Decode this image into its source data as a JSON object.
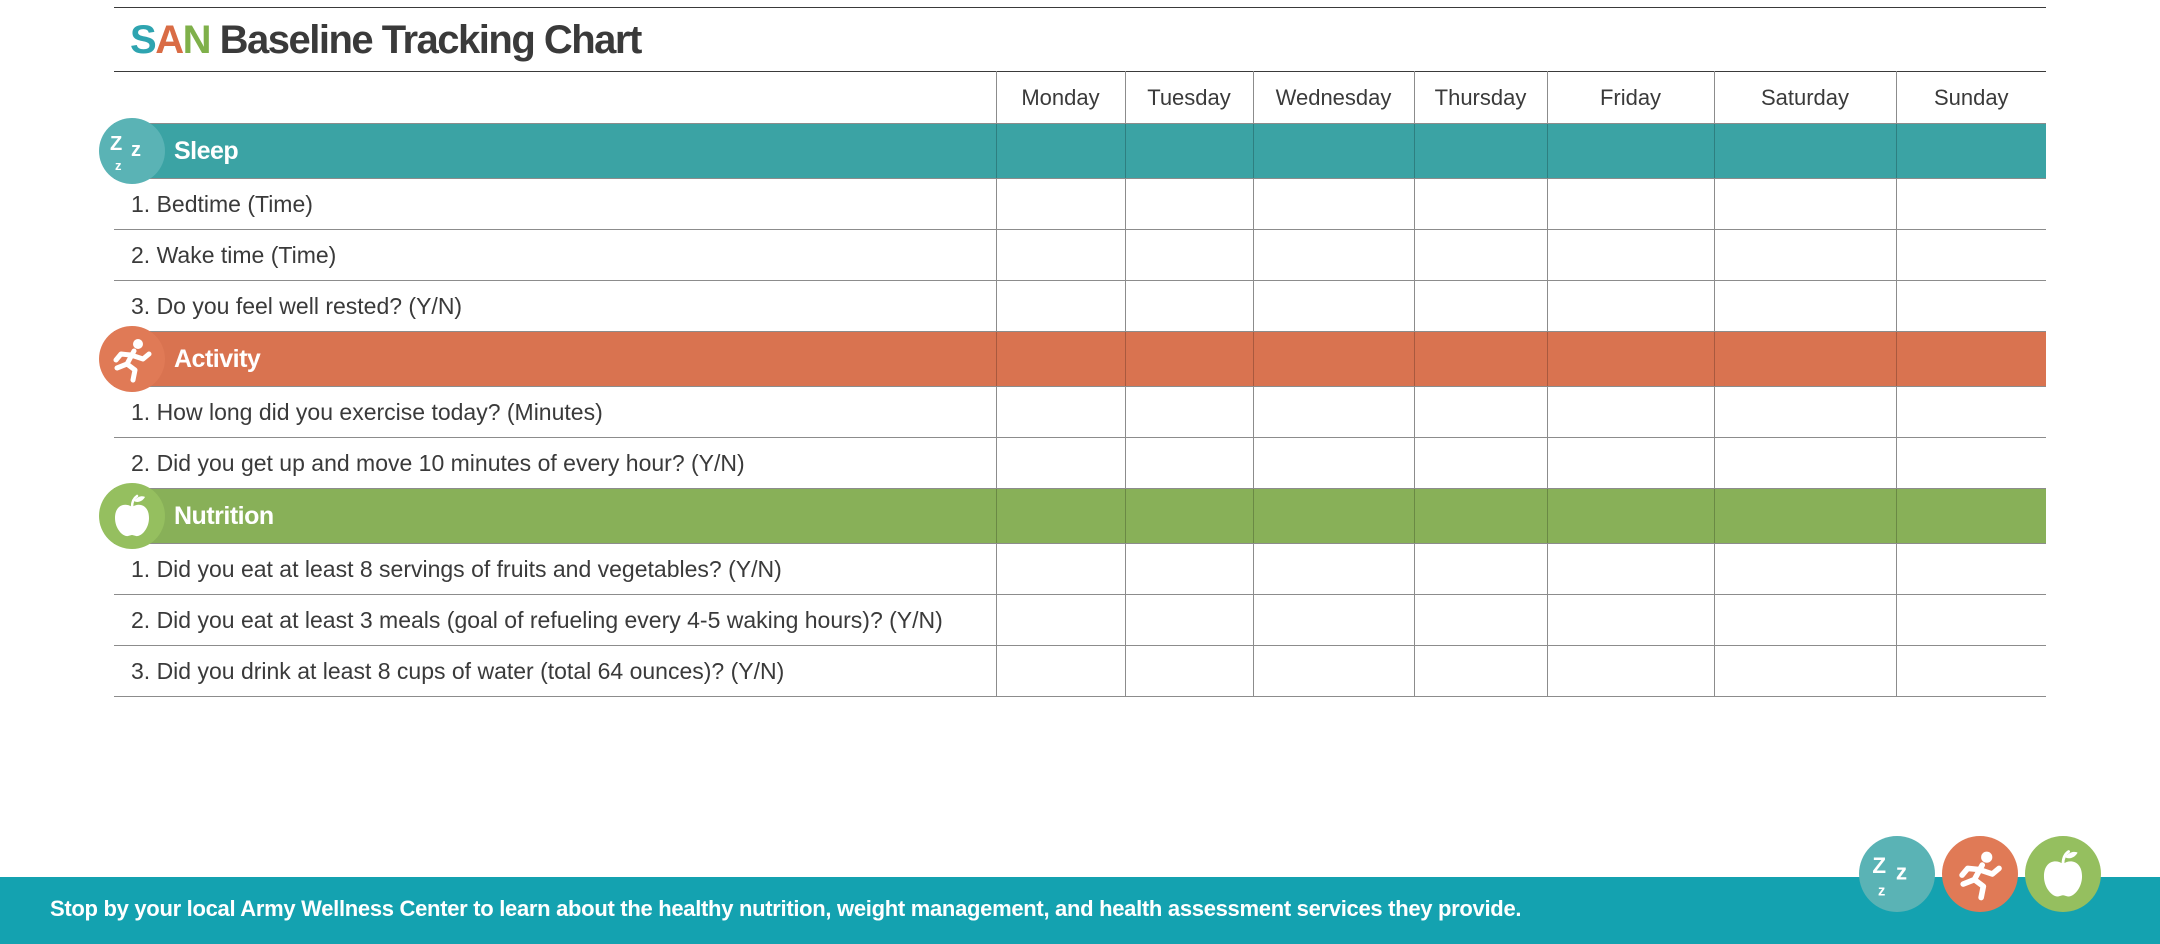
{
  "title": {
    "s": "S",
    "a": "A",
    "n": "N",
    "rest": "Baseline Tracking Chart"
  },
  "days": [
    "Monday",
    "Tuesday",
    "Wednesday",
    "Thursday",
    "Friday",
    "Saturday",
    "Sunday"
  ],
  "sections": {
    "sleep": {
      "label": "Sleep",
      "icon": "sleep-zz-icon",
      "color": "#3ba3a4",
      "questions": [
        "1. Bedtime  (Time)",
        "2. Wake time (Time)",
        "3. Do you feel well rested? (Y/N)"
      ]
    },
    "activity": {
      "label": "Activity",
      "icon": "runner-icon",
      "color": "#d97350",
      "questions": [
        "1. How long did you exercise today? (Minutes)",
        "2. Did you get up and move 10 minutes of every hour? (Y/N)"
      ]
    },
    "nutrition": {
      "label": "Nutrition",
      "icon": "apple-icon",
      "color": "#88b058",
      "questions": [
        "1. Did you eat at least 8 servings of fruits and vegetables? (Y/N)",
        "2. Did you eat at least 3 meals (goal of refueling every 4-5 waking hours)? (Y/N)",
        "3. Did you drink at least 8 cups of water (total 64 ounces)? (Y/N)"
      ]
    }
  },
  "footer": {
    "text": "Stop by your  local Army Wellness Center to learn about the healthy nutrition, weight management, and health assessment services they provide.",
    "color": "#14a2b0"
  },
  "colors": {
    "teal": "#2ea4b0",
    "orange": "#d96c45",
    "green": "#7fb04a",
    "text": "#3a3a3a"
  }
}
